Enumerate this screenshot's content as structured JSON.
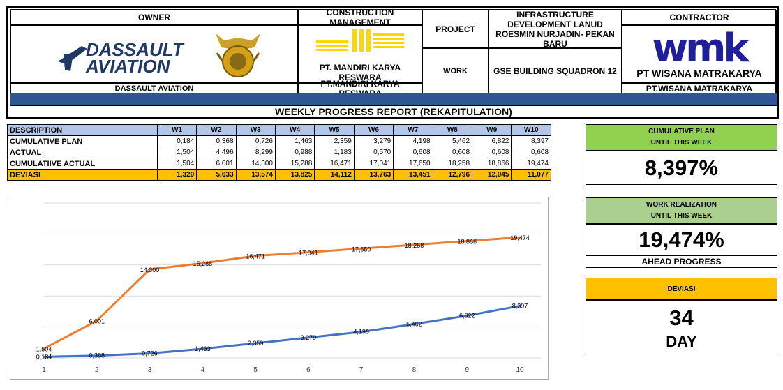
{
  "header": {
    "owner_label": "OWNER",
    "owner_logo_text": "DASSAULT\nAVIATION",
    "owner_name": "DASSAULT AVIATION",
    "cm_label": "CONSTRUCTION MANAGEMENT",
    "cm_logo_caption": "PT. MANDIRI KARYA RESWARA",
    "cm_name": "PT.MANDIRI KARYA RESWARA",
    "project_label": "PROJECT",
    "project_value": "INFRASTRUCTURE DEVELOPMENT LANUD ROESMIN NURJADIN- PEKAN BARU",
    "work_label": "WORK",
    "work_value": "GSE BUILDING SQUADRON 12",
    "contractor_label": "CONTRACTOR",
    "contractor_logo_text": "wmk",
    "contractor_logo_caption": "PT WISANA MATRAKARYA",
    "contractor_name": "PT.WISANA MATRAKARYA",
    "report_title": "WEEKLY PROGRESS REPORT (REKAPITULATION)"
  },
  "table": {
    "description_label": "DESCRIPTION",
    "weeks": [
      "W1",
      "W2",
      "W3",
      "W4",
      "W5",
      "W6",
      "W7",
      "W8",
      "W9",
      "W10"
    ],
    "rows": [
      {
        "label": "CUMULATIVE PLAN",
        "values": [
          "0,184",
          "0,368",
          "0,726",
          "1,463",
          "2,359",
          "3,279",
          "4,198",
          "5,462",
          "6,822",
          "8,397"
        ]
      },
      {
        "label": "ACTUAL",
        "values": [
          "1,504",
          "4,496",
          "8,299",
          "0,988",
          "1,183",
          "0,570",
          "0,608",
          "0,608",
          "0,608",
          "0,608"
        ]
      },
      {
        "label": "CUMULATIIVE ACTUAL",
        "values": [
          "1,504",
          "6,001",
          "14,300",
          "15,288",
          "16,471",
          "17,041",
          "17,650",
          "18,258",
          "18,866",
          "19,474"
        ]
      },
      {
        "label": "DEVIASI",
        "values": [
          "1,320",
          "5,633",
          "13,574",
          "13,825",
          "14,112",
          "13,763",
          "13,451",
          "12,796",
          "12,045",
          "11,077"
        ]
      }
    ]
  },
  "kpis": {
    "plan_title_1": "CUMULATIVE PLAN",
    "plan_title_2": "UNTIL THIS WEEK",
    "plan_value": "8,397%",
    "real_title_1": "WORK REALIZATION",
    "real_title_2": "UNTIL THIS WEEK",
    "real_value": "19,474%",
    "real_status": "AHEAD PROGRESS",
    "dev_title": "DEVIASI",
    "dev_value": "34",
    "dev_unit": "DAY",
    "colors": {
      "green": "#92d050",
      "light_green": "#a9d08e",
      "orange": "#ffc000"
    }
  },
  "chart_data": {
    "type": "line",
    "x": [
      1,
      2,
      3,
      4,
      5,
      6,
      7,
      8,
      9,
      10
    ],
    "xlim": [
      1,
      10
    ],
    "ylim": [
      0,
      25
    ],
    "grid": true,
    "title": "",
    "xlabel": "",
    "ylabel": "",
    "series": [
      {
        "color": "#ed7d31",
        "values": [
          1.504,
          6.001,
          14.3,
          15.288,
          16.471,
          17.041,
          17.65,
          18.258,
          18.866,
          19.474
        ],
        "labels": [
          "1,504",
          "6,001",
          "14,300",
          "15,288",
          "16,471",
          "17,041",
          "17,650",
          "18,258",
          "18,866",
          "19,474"
        ]
      },
      {
        "color": "#4472c4",
        "values": [
          0.184,
          0.368,
          0.726,
          1.463,
          2.359,
          3.279,
          4.198,
          5.462,
          6.822,
          8.397
        ],
        "labels": [
          "0,184",
          "0,368",
          "0,726",
          "1,463",
          "2,359",
          "3,279",
          "4,198",
          "5,462",
          "6,822",
          "8,397"
        ]
      }
    ]
  }
}
